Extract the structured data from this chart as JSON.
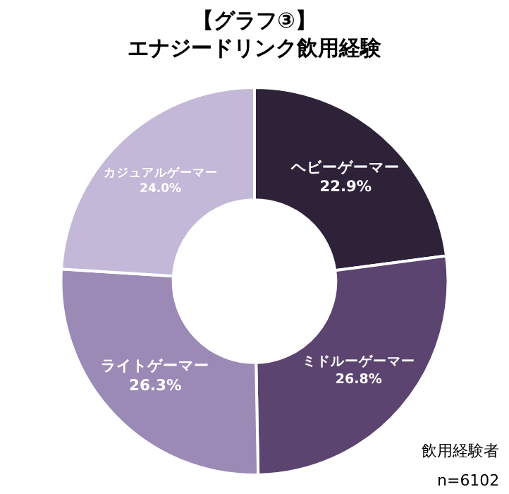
{
  "chart_data": {
    "type": "donut",
    "title": "【グラフ③】",
    "subtitle": "エナジードリンク飲用経験",
    "categories": [
      "ヘビーゲーマー",
      "ミドルーゲーマー",
      "ライトゲーマー",
      "カジュアルゲーマー"
    ],
    "values": [
      22.9,
      26.8,
      26.3,
      24.0
    ],
    "value_labels": [
      "22.9%",
      "26.8%",
      "26.3%",
      "24.0%"
    ],
    "colors": [
      "#2e2238",
      "#5b4470",
      "#9c8ab6",
      "#c3b8d8"
    ],
    "annotations": [
      "飲用経験者",
      "n=6102"
    ],
    "legend": false
  }
}
